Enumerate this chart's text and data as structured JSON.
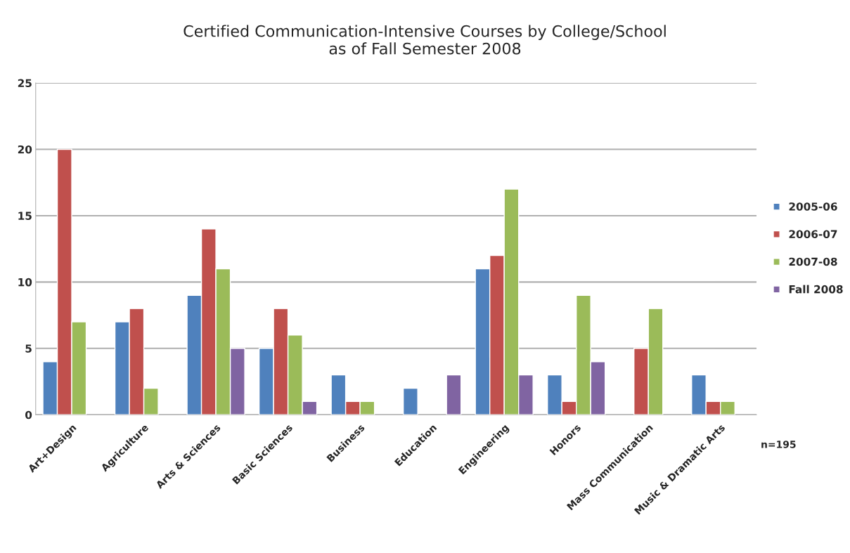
{
  "chart_data": {
    "type": "bar",
    "title": "Certified Communication-Intensive Courses by College/School\nas of Fall Semester 2008",
    "categories": [
      "Art+Design",
      "Agriculture",
      "Arts & Sciences",
      "Basic Sciences",
      "Business",
      "Education",
      "Engineering",
      "Honors",
      "Mass Communication",
      "Music & Dramatic Arts"
    ],
    "series": [
      {
        "name": "2005-06",
        "color": "#4f81bd",
        "values": [
          4,
          7,
          9,
          5,
          3,
          2,
          11,
          3,
          null,
          3
        ]
      },
      {
        "name": "2006-07",
        "color": "#c0504d",
        "values": [
          20,
          8,
          14,
          8,
          1,
          null,
          12,
          1,
          5,
          1
        ]
      },
      {
        "name": "2007-08",
        "color": "#9bbb59",
        "values": [
          7,
          2,
          11,
          6,
          1,
          null,
          17,
          9,
          8,
          1
        ]
      },
      {
        "name": "Fall 2008",
        "color": "#8064a2",
        "values": [
          null,
          null,
          5,
          1,
          null,
          3,
          3,
          4,
          null,
          null
        ]
      }
    ],
    "ylim": [
      0,
      25
    ],
    "yticks": [
      0,
      5,
      10,
      15,
      20,
      25
    ],
    "grid": "y",
    "legend": "right",
    "annotations": [
      "n=195"
    ]
  }
}
